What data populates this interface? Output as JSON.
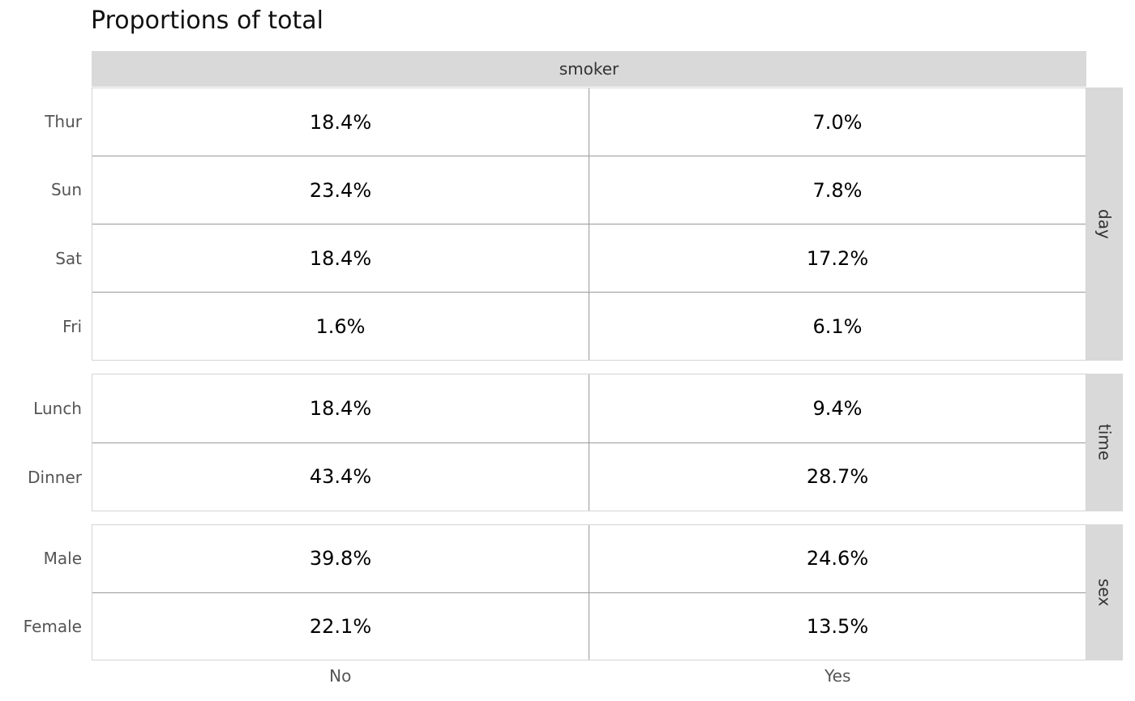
{
  "title": "Proportions of total",
  "chart_data": {
    "type": "table",
    "title": "Proportions of total",
    "column_facet_label": "smoker",
    "columns": [
      "No",
      "Yes"
    ],
    "unit": "%",
    "facets": [
      {
        "name": "day",
        "rows": [
          "Thur",
          "Sun",
          "Sat",
          "Fri"
        ],
        "cells": [
          [
            "18.4%",
            "7.0%"
          ],
          [
            "23.4%",
            "7.8%"
          ],
          [
            "18.4%",
            "17.2%"
          ],
          [
            "1.6%",
            "6.1%"
          ]
        ],
        "values": [
          [
            18.4,
            7.0
          ],
          [
            23.4,
            7.8
          ],
          [
            18.4,
            17.2
          ],
          [
            1.6,
            6.1
          ]
        ]
      },
      {
        "name": "time",
        "rows": [
          "Lunch",
          "Dinner"
        ],
        "cells": [
          [
            "18.4%",
            "9.4%"
          ],
          [
            "43.4%",
            "28.7%"
          ]
        ],
        "values": [
          [
            18.4,
            9.4
          ],
          [
            43.4,
            28.7
          ]
        ]
      },
      {
        "name": "sex",
        "rows": [
          "Male",
          "Female"
        ],
        "cells": [
          [
            "39.8%",
            "24.6%"
          ],
          [
            "22.1%",
            "13.5%"
          ]
        ],
        "values": [
          [
            39.8,
            24.6
          ],
          [
            22.1,
            13.5
          ]
        ]
      }
    ],
    "layout": {
      "grid_visible": true,
      "legend_position": "none"
    }
  },
  "colors": {
    "strip_bg": "#d9d9d9",
    "grid_line": "#999999",
    "panel_border": "#d4d4d4",
    "axis_label": "#555555",
    "strip_text": "#333333",
    "value_text": "#000000",
    "background": "#ffffff"
  }
}
